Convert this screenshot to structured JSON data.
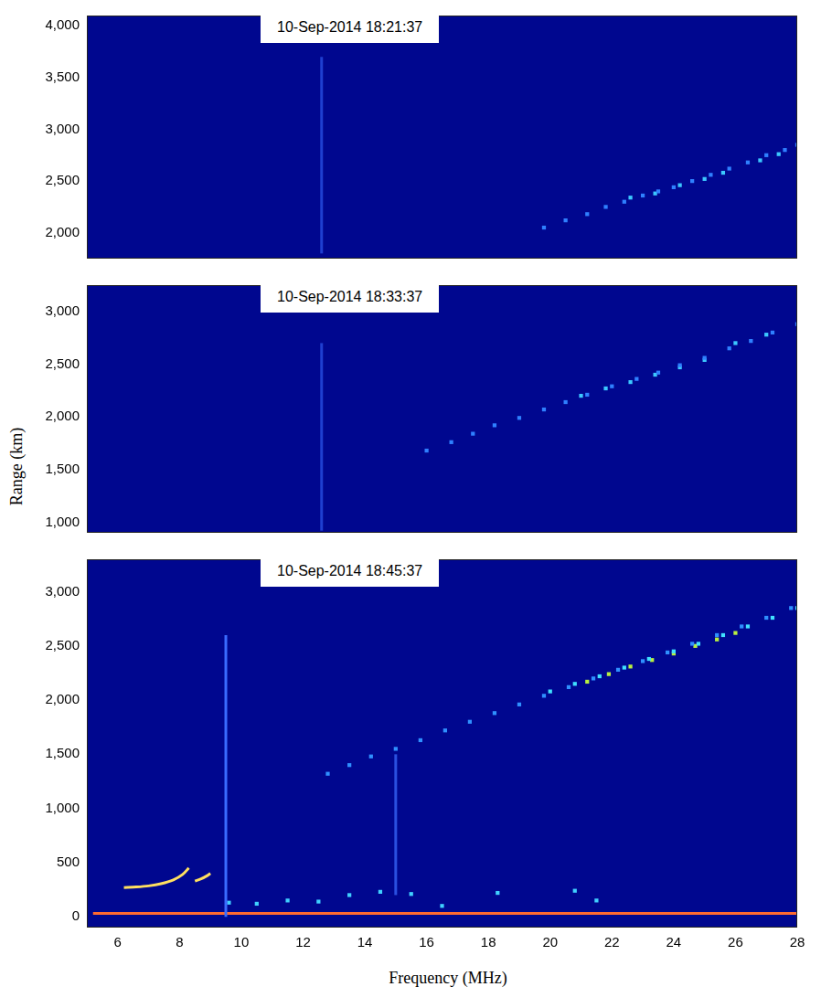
{
  "ylabel": "Range (km)",
  "xlabel": "Frequency (MHz)",
  "chart_data": [
    {
      "type": "scatter",
      "title": "10-Sep-2014 18:21:37",
      "grid": false,
      "tick_labels": "y",
      "marker": "square",
      "xlim": [
        5,
        28
      ],
      "xticks": [
        6,
        8,
        10,
        12,
        14,
        16,
        18,
        20,
        22,
        24,
        26,
        28
      ],
      "ylim": [
        1750,
        4100
      ],
      "yticks": [
        2000,
        2500,
        3000,
        3500,
        4000
      ],
      "series": [
        {
          "type": "line",
          "color": "#1f3fd0",
          "x": [
            12.6,
            12.6,
            12.6,
            12.6,
            12.6,
            12.6,
            12.6,
            12.6,
            12.6,
            12.6
          ],
          "values": [
            1800,
            2000,
            2200,
            2400,
            2600,
            2800,
            3000,
            3200,
            3400,
            3700
          ]
        },
        {
          "color": "#2f80ff",
          "x": [
            19.8,
            20.5,
            21.2,
            21.8,
            22.4,
            23.0,
            23.5,
            24.0,
            24.6,
            25.2,
            25.8,
            26.4,
            27.0,
            27.6,
            28.0
          ],
          "values": [
            2050,
            2120,
            2180,
            2250,
            2300,
            2360,
            2400,
            2440,
            2500,
            2560,
            2620,
            2680,
            2750,
            2800,
            2850
          ]
        },
        {
          "color": "#3cc8ff",
          "x": [
            22.6,
            23.4,
            24.2,
            25.0,
            25.6,
            26.8,
            27.4
          ],
          "values": [
            2340,
            2380,
            2460,
            2520,
            2580,
            2700,
            2760
          ]
        }
      ]
    },
    {
      "type": "scatter",
      "title": "10-Sep-2014 18:33:37",
      "grid": false,
      "tick_labels": "y",
      "marker": "square",
      "xlim": [
        5,
        28
      ],
      "xticks": [
        6,
        8,
        10,
        12,
        14,
        16,
        18,
        20,
        22,
        24,
        26,
        28
      ],
      "ylim": [
        900,
        3250
      ],
      "yticks": [
        1000,
        1500,
        2000,
        2500,
        3000
      ],
      "series": [
        {
          "type": "line",
          "color": "#1f3fd0",
          "x": [
            12.6,
            12.6,
            12.6,
            12.6,
            12.6,
            12.6
          ],
          "values": [
            920,
            1200,
            1600,
            2000,
            2400,
            2700
          ]
        },
        {
          "color": "#2f80ff",
          "x": [
            16.0,
            16.8,
            17.5,
            18.2,
            19.0,
            19.8,
            20.5,
            21.2,
            22.0,
            22.8,
            23.5,
            24.2,
            25.0,
            25.8,
            26.5,
            27.2,
            28.0
          ],
          "values": [
            1680,
            1760,
            1840,
            1920,
            1990,
            2070,
            2140,
            2210,
            2290,
            2360,
            2420,
            2490,
            2560,
            2650,
            2720,
            2800,
            2880
          ]
        },
        {
          "color": "#3cc8ff",
          "x": [
            21.0,
            21.8,
            22.6,
            23.4,
            24.2,
            25.0,
            26.0,
            27.0
          ],
          "values": [
            2200,
            2270,
            2330,
            2400,
            2470,
            2540,
            2700,
            2780
          ]
        }
      ]
    },
    {
      "type": "scatter",
      "title": "10-Sep-2014 18:45:37",
      "grid": false,
      "tick_labels": true,
      "marker": "square",
      "xlim": [
        5,
        28
      ],
      "xticks": [
        6,
        8,
        10,
        12,
        14,
        16,
        18,
        20,
        22,
        24,
        26,
        28
      ],
      "ylim": [
        -100,
        3300
      ],
      "yticks": [
        0,
        500,
        1000,
        1500,
        2000,
        2500,
        3000
      ],
      "series": [
        {
          "type": "line",
          "color": "#3a6cff",
          "x": [
            9.5,
            9.5,
            9.5,
            9.5,
            9.5,
            9.5
          ],
          "values": [
            0,
            500,
            1000,
            1500,
            2000,
            2600
          ]
        },
        {
          "type": "line",
          "color": "#2a50e0",
          "x": [
            15.0,
            15.0,
            15.0,
            15.0
          ],
          "values": [
            200,
            700,
            1100,
            1500
          ]
        },
        {
          "color": "#2f90ff",
          "x": [
            12.8,
            13.5,
            14.2,
            15.0,
            15.8,
            16.6,
            17.4,
            18.2,
            19.0,
            19.8,
            20.6,
            21.4,
            22.2,
            23.0,
            23.8,
            24.6,
            25.4,
            26.2,
            27.0,
            27.8
          ],
          "values": [
            1320,
            1400,
            1480,
            1550,
            1630,
            1720,
            1800,
            1880,
            1960,
            2040,
            2120,
            2200,
            2280,
            2360,
            2440,
            2520,
            2600,
            2680,
            2760,
            2850
          ]
        },
        {
          "color": "#40e0ff",
          "x": [
            20.0,
            20.8,
            21.6,
            22.4,
            23.2,
            24.0,
            24.8,
            25.6,
            26.4,
            27.2,
            28.0
          ],
          "values": [
            2080,
            2150,
            2220,
            2300,
            2380,
            2450,
            2520,
            2600,
            2680,
            2760,
            2850
          ]
        },
        {
          "color": "#b8f040",
          "x": [
            21.2,
            21.9,
            22.6,
            23.3,
            24.0,
            24.7,
            25.4,
            26.0
          ],
          "values": [
            2170,
            2240,
            2310,
            2370,
            2430,
            2500,
            2560,
            2620
          ]
        },
        {
          "type": "line",
          "color": "#ffe060",
          "x": [
            6.2,
            6.6,
            7.0,
            7.4,
            7.8,
            8.1,
            8.3
          ],
          "values": [
            270,
            275,
            285,
            305,
            340,
            390,
            450
          ]
        },
        {
          "type": "line",
          "color": "#ffe060",
          "x": [
            8.5,
            8.7,
            8.9,
            9.0
          ],
          "values": [
            330,
            350,
            380,
            400
          ]
        },
        {
          "color": "#40d0ff",
          "x": [
            9.6,
            10.5,
            11.5,
            12.5,
            13.5,
            14.5,
            15.5,
            16.5,
            18.3,
            20.8,
            21.5
          ],
          "values": [
            130,
            120,
            150,
            140,
            200,
            230,
            210,
            100,
            220,
            240,
            150
          ]
        },
        {
          "type": "line",
          "color": "#ff6a30",
          "x": [
            5.2,
            7,
            9,
            11,
            13,
            15,
            17,
            19,
            21,
            23,
            25,
            27,
            28
          ],
          "values": [
            30,
            30,
            30,
            30,
            30,
            30,
            30,
            30,
            30,
            30,
            30,
            30,
            30
          ]
        }
      ]
    }
  ]
}
